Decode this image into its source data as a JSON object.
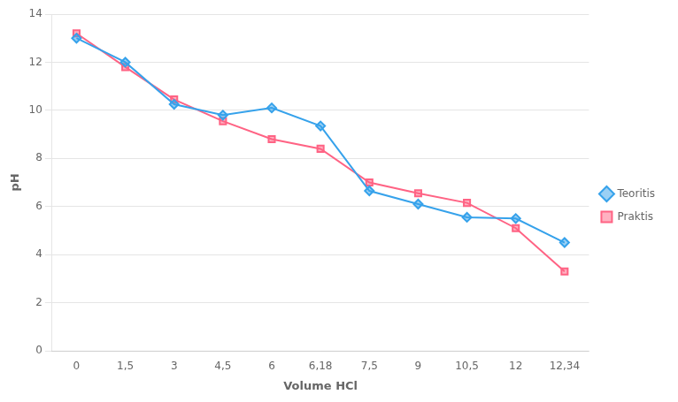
{
  "chart_data": {
    "type": "line",
    "xlabel": "Volume HCl",
    "ylabel": "pH",
    "categories": [
      "0",
      "1,5",
      "3",
      "4,5",
      "6",
      "6,18",
      "7,5",
      "9",
      "10,5",
      "12",
      "12,34"
    ],
    "series": [
      {
        "name": "Teoritis",
        "marker": "diamond",
        "line_style": "solid",
        "values": [
          13.0,
          12.0,
          10.25,
          9.8,
          10.1,
          9.35,
          6.65,
          6.1,
          5.55,
          5.5,
          4.5
        ]
      },
      {
        "name": "Praktis",
        "marker": "square",
        "line_style": "solid",
        "values": [
          13.2,
          11.8,
          10.45,
          9.55,
          8.8,
          8.4,
          7.0,
          6.55,
          6.15,
          5.1,
          3.3
        ]
      }
    ],
    "ylim": [
      0,
      14
    ],
    "yticks": [
      0,
      2,
      4,
      6,
      8,
      10,
      12,
      14
    ],
    "grid": "y",
    "legend": "right"
  }
}
